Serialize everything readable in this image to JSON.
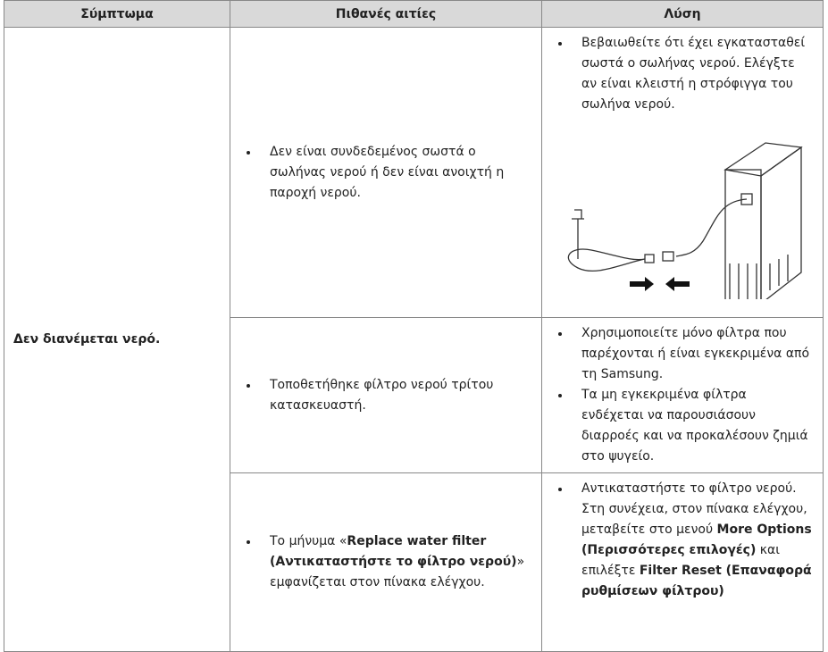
{
  "table": {
    "headers": [
      "Σύμπτωμα",
      "Πιθανές αιτίες",
      "Λύση"
    ],
    "symptom": "Δεν διανέμεται νερό.",
    "rows": [
      {
        "causes": [
          [
            {
              "t": "Δεν είναι συνδεδεμένος σωστά ο σωλήνας νερού ή δεν είναι ανοιχτή η παροχή νερού."
            }
          ]
        ],
        "solutions": [
          [
            {
              "t": "Βεβαιωθείτε ότι έχει εγκατασταθεί σωστά ο σωλήνας νερού. Ελέγξτε αν είναι κλειστή η στρόφιγγα του σωλήνα νερού."
            }
          ]
        ]
      },
      {
        "causes": [
          [
            {
              "t": "Τοποθετήθηκε φίλτρο νερού τρίτου κατασκευαστή."
            }
          ]
        ],
        "solutions": [
          [
            {
              "t": "Χρησιμοποιείτε μόνο φίλτρα που παρέχονται ή είναι εγκεκριμένα από τη Samsung."
            }
          ],
          [
            {
              "t": "Τα μη εγκεκριμένα φίλτρα ενδέχεται να παρουσιάσουν διαρροές και να προκαλέσουν ζημιά στο ψυγείο."
            }
          ]
        ]
      },
      {
        "causes": [
          [
            {
              "t": "Το μήνυμα «"
            },
            {
              "t": "Replace water filter (Αντικαταστήστε το φίλτρο νερού)",
              "b": true
            },
            {
              "t": "» εμφανίζεται στον πίνακα ελέγχου."
            }
          ]
        ],
        "solutions": [
          [
            {
              "t": "Αντικαταστήστε το φίλτρο νερού. Στη συνέχεια, στον πίνακα ελέγχου, μεταβείτε στο μενού "
            },
            {
              "t": "More Options (Περισσότερες επιλογές)",
              "b": true
            },
            {
              "t": " και επιλέξτε "
            },
            {
              "t": "Filter Reset (Επαναφορά ρυθμίσεων φίλτρου)",
              "b": true
            }
          ]
        ]
      }
    ]
  }
}
